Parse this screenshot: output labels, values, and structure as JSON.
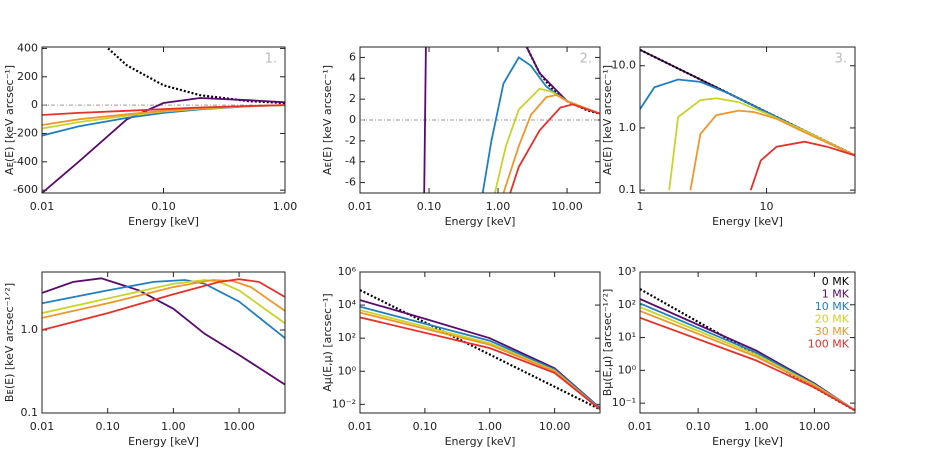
{
  "chart_data": [
    {
      "type": "line",
      "annotation": "1.",
      "x_label": "Energy [keV]",
      "y_label": "Aᴇ(E) [keV arcsec⁻¹]",
      "xlog": true,
      "ylog": false,
      "xlim": [
        0.01,
        1
      ],
      "ylim": [
        -620,
        410
      ],
      "xticks": [
        0.01,
        {
          "value": 0.1,
          "label": "0.10"
        },
        {
          "value": 1,
          "label": "1.00"
        }
      ],
      "yticks": [
        -600,
        -400,
        -200,
        0,
        200,
        400
      ],
      "reference_line": 0,
      "series": [
        {
          "color": "#000000",
          "style": "dotted",
          "x": [
            0.035,
            0.05,
            0.1,
            0.2,
            0.5,
            1
          ],
          "values": [
            400,
            280,
            140,
            70,
            28,
            14
          ]
        },
        {
          "color": "#5a0a6e",
          "style": "solid",
          "x": [
            0.01,
            0.02,
            0.05,
            0.1,
            0.2,
            0.5,
            1
          ],
          "values": [
            -620,
            -400,
            -100,
            15,
            50,
            35,
            20
          ]
        },
        {
          "color": "#1f7fbf",
          "style": "solid",
          "x": [
            0.01,
            0.02,
            0.05,
            0.1,
            0.2,
            0.5,
            1
          ],
          "values": [
            -215,
            -150,
            -90,
            -55,
            -30,
            -8,
            0
          ]
        },
        {
          "color": "#c8d42a",
          "style": "solid",
          "x": [
            0.01,
            0.02,
            0.05,
            0.1,
            0.2,
            0.5,
            1
          ],
          "values": [
            -165,
            -120,
            -75,
            -45,
            -25,
            -8,
            0
          ]
        },
        {
          "color": "#f0962a",
          "style": "solid",
          "x": [
            0.01,
            0.02,
            0.05,
            0.1,
            0.2,
            0.5,
            1
          ],
          "values": [
            -140,
            -100,
            -65,
            -40,
            -22,
            -7,
            0
          ]
        },
        {
          "color": "#e8302a",
          "style": "solid",
          "x": [
            0.01,
            0.02,
            0.05,
            0.1,
            0.2,
            0.5,
            1
          ],
          "values": [
            -70,
            -55,
            -40,
            -28,
            -17,
            -6,
            0
          ]
        }
      ]
    },
    {
      "type": "line",
      "annotation": "2.",
      "x_label": "Energy [keV]",
      "y_label": "Aᴇ(E) [keV arcsec⁻¹]",
      "xlog": true,
      "ylog": false,
      "xlim": [
        0.01,
        30
      ],
      "ylim": [
        -7,
        7
      ],
      "xticks": [
        0.01,
        {
          "value": 0.1,
          "label": "0.10"
        },
        {
          "value": 1,
          "label": "1.00"
        },
        {
          "value": 10,
          "label": "10.00"
        }
      ],
      "yticks": [
        -6,
        -4,
        -2,
        0,
        2,
        4,
        6
      ],
      "reference_line": 0,
      "series": [
        {
          "color": "#000000",
          "style": "dotted",
          "x": [
            2.6,
            4,
            6,
            10,
            20,
            30
          ],
          "values": [
            7,
            4.5,
            3,
            1.8,
            0.9,
            0.6
          ]
        },
        {
          "color": "#5a0a6e",
          "style": "solid",
          "x": [
            0.085,
            0.09,
            0.1,
            2.6,
            4,
            10,
            30
          ],
          "values": [
            -7,
            7,
            null,
            7,
            4.5,
            1.8,
            0.6
          ]
        },
        {
          "color": "#1f7fbf",
          "style": "solid",
          "x": [
            0.6,
            0.8,
            1.2,
            2,
            3,
            5,
            10,
            30
          ],
          "values": [
            -7,
            -2,
            3.5,
            6,
            5.2,
            3.2,
            1.8,
            0.6
          ]
        },
        {
          "color": "#c8d42a",
          "style": "solid",
          "x": [
            0.9,
            1.3,
            2,
            4,
            6,
            10,
            30
          ],
          "values": [
            -7,
            -2.5,
            1,
            3,
            2.7,
            1.8,
            0.6
          ]
        },
        {
          "color": "#f0962a",
          "style": "solid",
          "x": [
            1.2,
            2,
            3,
            5,
            7,
            10,
            30
          ],
          "values": [
            -7,
            -2.5,
            0.5,
            2.2,
            2.4,
            1.8,
            0.6
          ]
        },
        {
          "color": "#e8302a",
          "style": "solid",
          "x": [
            1.5,
            2,
            4,
            8,
            12,
            20,
            30
          ],
          "values": [
            -7,
            -4.5,
            -1,
            1.2,
            1.5,
            1,
            0.6
          ]
        }
      ]
    },
    {
      "type": "line",
      "annotation": "3.",
      "x_label": "Energy [keV]",
      "y_label": "Aᴇ(E) [keV arcsec⁻¹]",
      "xlog": true,
      "ylog": true,
      "xlim": [
        1,
        50
      ],
      "ylim": [
        0.09,
        20
      ],
      "xticks": [
        1,
        10
      ],
      "yticks": [
        0.1,
        {
          "value": 1,
          "label": "1.0"
        },
        {
          "value": 10,
          "label": "10.0"
        }
      ],
      "series": [
        {
          "color": "#5a0a6e",
          "style": "solid",
          "x": [
            1,
            50
          ],
          "values": [
            18,
            0.36
          ]
        },
        {
          "color": "#000000",
          "style": "dotted",
          "x": [
            1,
            50
          ],
          "values": [
            18,
            0.36
          ]
        },
        {
          "color": "#1f7fbf",
          "style": "solid",
          "x": [
            1,
            1.3,
            2,
            3,
            5,
            10,
            20,
            50
          ],
          "values": [
            2,
            4.5,
            6,
            5.5,
            3.6,
            1.8,
            0.9,
            0.36
          ]
        },
        {
          "color": "#c8d42a",
          "style": "solid",
          "x": [
            1.7,
            2,
            3,
            4,
            6,
            10,
            20,
            50
          ],
          "values": [
            0.1,
            1.5,
            2.8,
            3,
            2.6,
            1.7,
            0.9,
            0.36
          ]
        },
        {
          "color": "#f0962a",
          "style": "solid",
          "x": [
            2.5,
            3,
            4,
            6,
            8,
            12,
            20,
            50
          ],
          "values": [
            0.1,
            0.8,
            1.6,
            1.9,
            1.8,
            1.4,
            0.85,
            0.36
          ]
        },
        {
          "color": "#e8302a",
          "style": "solid",
          "x": [
            7.5,
            9,
            12,
            20,
            30,
            50
          ],
          "values": [
            0.1,
            0.3,
            0.5,
            0.6,
            0.5,
            0.36
          ]
        }
      ]
    },
    {
      "type": "line",
      "x_label": "Energy [keV]",
      "y_label": "Bᴇ(E) [keV arcsec⁻¹ᐟ²]",
      "xlog": true,
      "ylog": true,
      "xlim": [
        0.01,
        50
      ],
      "ylim": [
        0.1,
        5
      ],
      "xticks": [
        0.01,
        {
          "value": 0.1,
          "label": "0.10"
        },
        {
          "value": 1,
          "label": "1.00"
        },
        {
          "value": 10,
          "label": "10.00"
        }
      ],
      "yticks": [
        0.1,
        {
          "value": 1,
          "label": "1.0"
        }
      ],
      "series": [
        {
          "color": "#5a0a6e",
          "style": "solid",
          "x": [
            0.01,
            0.03,
            0.08,
            0.3,
            1,
            3,
            10,
            50
          ],
          "values": [
            2.8,
            3.8,
            4.2,
            3,
            1.8,
            0.9,
            0.5,
            0.22
          ]
        },
        {
          "color": "#1f7fbf",
          "style": "solid",
          "x": [
            0.01,
            0.1,
            0.5,
            1.5,
            3,
            10,
            50
          ],
          "values": [
            2.1,
            3,
            3.8,
            4,
            3.6,
            2.2,
            0.8
          ]
        },
        {
          "color": "#c8d42a",
          "style": "solid",
          "x": [
            0.01,
            0.1,
            1,
            3,
            5,
            10,
            50
          ],
          "values": [
            1.6,
            2.4,
            3.6,
            4,
            3.8,
            3,
            1.2
          ]
        },
        {
          "color": "#f0962a",
          "style": "solid",
          "x": [
            0.01,
            0.1,
            1,
            4,
            8,
            15,
            50
          ],
          "values": [
            1.4,
            2.1,
            3.3,
            4,
            3.9,
            3.3,
            1.7
          ]
        },
        {
          "color": "#e8302a",
          "style": "solid",
          "x": [
            0.01,
            0.1,
            1,
            5,
            10,
            20,
            50
          ],
          "values": [
            1,
            1.6,
            2.7,
            3.8,
            4.1,
            3.8,
            2.5
          ]
        }
      ]
    },
    {
      "type": "line",
      "x_label": "Energy [keV]",
      "y_label": "Aμ(E,μ) [arcsec⁻¹]",
      "xlog": true,
      "ylog": true,
      "xlim": [
        0.01,
        50
      ],
      "ylim": [
        0.003,
        1000000
      ],
      "xticks": [
        0.01,
        {
          "value": 0.1,
          "label": "0.10"
        },
        {
          "value": 1,
          "label": "1.00"
        },
        {
          "value": 10,
          "label": "10.00"
        }
      ],
      "yticks": [
        {
          "value": 0.01,
          "label": "10⁻²"
        },
        {
          "value": 1,
          "label": "10⁰"
        },
        {
          "value": 100,
          "label": "10²"
        },
        {
          "value": 10000,
          "label": "10⁴"
        },
        {
          "value": 1000000,
          "label": "10⁶"
        }
      ],
      "series": [
        {
          "color": "#000000",
          "style": "dotted",
          "x": [
            0.01,
            50
          ],
          "values": [
            80000,
            0.005
          ]
        },
        {
          "color": "#5a0a6e",
          "style": "solid",
          "x": [
            0.01,
            0.1,
            1,
            10,
            50
          ],
          "values": [
            20000,
            1500,
            100,
            1.5,
            0.006
          ]
        },
        {
          "color": "#1f7fbf",
          "style": "solid",
          "x": [
            0.01,
            1,
            10,
            50
          ],
          "values": [
            8000,
            70,
            1.3,
            0.006
          ]
        },
        {
          "color": "#c8d42a",
          "style": "solid",
          "x": [
            0.01,
            1,
            10,
            50
          ],
          "values": [
            5000,
            50,
            1.1,
            0.005
          ]
        },
        {
          "color": "#f0962a",
          "style": "solid",
          "x": [
            0.01,
            1,
            10,
            50
          ],
          "values": [
            3500,
            40,
            1,
            0.005
          ]
        },
        {
          "color": "#e8302a",
          "style": "solid",
          "x": [
            0.01,
            1,
            10,
            50
          ],
          "values": [
            1800,
            25,
            0.8,
            0.005
          ]
        }
      ]
    },
    {
      "type": "line",
      "x_label": "Energy [keV]",
      "y_label": "Bμ(E,μ) [arcsec⁻¹ᐟ²]",
      "xlog": true,
      "ylog": true,
      "xlim": [
        0.01,
        50
      ],
      "ylim": [
        0.05,
        1000
      ],
      "xticks": [
        0.01,
        {
          "value": 0.1,
          "label": "0.10"
        },
        {
          "value": 1,
          "label": "1.00"
        },
        {
          "value": 10,
          "label": "10.00"
        }
      ],
      "yticks": [
        {
          "value": 0.1,
          "label": "10⁻¹"
        },
        {
          "value": 1,
          "label": "10⁰"
        },
        {
          "value": 10,
          "label": "10¹"
        },
        {
          "value": 100,
          "label": "10²"
        },
        {
          "value": 1000,
          "label": "10³"
        }
      ],
      "legend": "upper right",
      "series": [
        {
          "name": "0 MK",
          "color": "#000000",
          "style": "dotted",
          "x": [
            0.01,
            50
          ],
          "values": [
            300,
            0.06
          ]
        },
        {
          "name": "1 MK",
          "color": "#5a0a6e",
          "style": "solid",
          "x": [
            0.01,
            1,
            10,
            50
          ],
          "values": [
            150,
            4,
            0.4,
            0.06
          ]
        },
        {
          "name": "10 MK",
          "color": "#1f7fbf",
          "style": "solid",
          "x": [
            0.01,
            1,
            10,
            50
          ],
          "values": [
            110,
            3.5,
            0.38,
            0.06
          ]
        },
        {
          "name": "20 MK",
          "color": "#c8d42a",
          "style": "solid",
          "x": [
            0.01,
            1,
            10,
            50
          ],
          "values": [
            85,
            3,
            0.36,
            0.06
          ]
        },
        {
          "name": "30 MK",
          "color": "#f0962a",
          "style": "solid",
          "x": [
            0.01,
            1,
            10,
            50
          ],
          "values": [
            65,
            2.6,
            0.34,
            0.06
          ]
        },
        {
          "name": "100 MK",
          "color": "#e8302a",
          "style": "solid",
          "x": [
            0.01,
            1,
            10,
            50
          ],
          "values": [
            40,
            2,
            0.3,
            0.06
          ]
        }
      ]
    }
  ]
}
